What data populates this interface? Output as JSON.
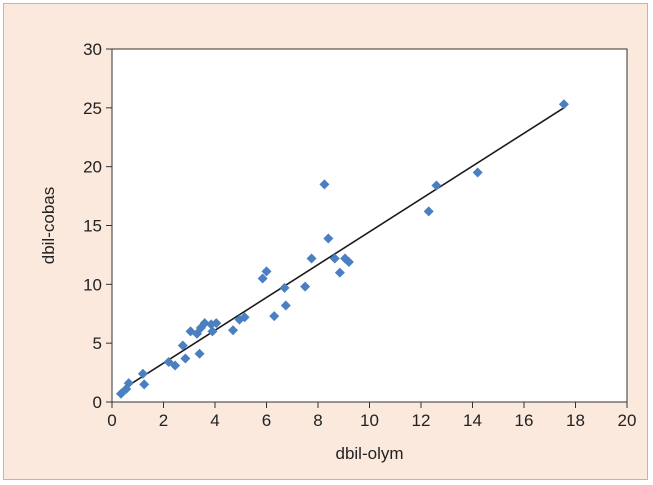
{
  "chart_data": {
    "type": "scatter",
    "title": "",
    "xlabel": "dbil-olym",
    "ylabel": "dbil-cobas",
    "xlim": [
      0,
      20
    ],
    "ylim": [
      0,
      30
    ],
    "xticks": [
      0,
      2,
      4,
      6,
      8,
      10,
      12,
      14,
      16,
      18,
      20
    ],
    "yticks": [
      0,
      5,
      10,
      15,
      20,
      25,
      30
    ],
    "grid": false,
    "legend": "none",
    "series": [
      {
        "points": [
          {
            "x": 0.35,
            "y": 0.7
          },
          {
            "x": 0.55,
            "y": 1.1
          },
          {
            "x": 0.65,
            "y": 1.6
          },
          {
            "x": 1.2,
            "y": 2.4
          },
          {
            "x": 1.25,
            "y": 1.5
          },
          {
            "x": 2.2,
            "y": 3.4
          },
          {
            "x": 2.45,
            "y": 3.1
          },
          {
            "x": 2.75,
            "y": 4.8
          },
          {
            "x": 2.85,
            "y": 3.7
          },
          {
            "x": 3.05,
            "y": 6.0
          },
          {
            "x": 3.3,
            "y": 5.8
          },
          {
            "x": 3.4,
            "y": 4.1
          },
          {
            "x": 3.45,
            "y": 6.3
          },
          {
            "x": 3.6,
            "y": 6.7
          },
          {
            "x": 3.85,
            "y": 6.6
          },
          {
            "x": 3.9,
            "y": 6.0
          },
          {
            "x": 4.05,
            "y": 6.7
          },
          {
            "x": 4.7,
            "y": 6.1
          },
          {
            "x": 4.95,
            "y": 7.0
          },
          {
            "x": 5.15,
            "y": 7.2
          },
          {
            "x": 5.85,
            "y": 10.5
          },
          {
            "x": 6.0,
            "y": 11.1
          },
          {
            "x": 6.3,
            "y": 7.3
          },
          {
            "x": 6.7,
            "y": 9.7
          },
          {
            "x": 6.75,
            "y": 8.2
          },
          {
            "x": 7.5,
            "y": 9.8
          },
          {
            "x": 7.75,
            "y": 12.2
          },
          {
            "x": 8.25,
            "y": 18.5
          },
          {
            "x": 8.4,
            "y": 13.9
          },
          {
            "x": 8.65,
            "y": 12.2
          },
          {
            "x": 8.85,
            "y": 11.0
          },
          {
            "x": 9.05,
            "y": 12.2
          },
          {
            "x": 9.2,
            "y": 11.9
          },
          {
            "x": 12.3,
            "y": 16.2
          },
          {
            "x": 12.6,
            "y": 18.4
          },
          {
            "x": 14.2,
            "y": 19.5
          },
          {
            "x": 17.55,
            "y": 25.3
          }
        ]
      }
    ],
    "fit_line": {
      "x": [
        0.35,
        17.55
      ],
      "y": [
        1.0,
        25.0
      ]
    },
    "colors": {
      "marker": "#4a7fc1",
      "fit_line": "#1a1a1a",
      "background": "#fbe9dd",
      "plot_area": "#ffffff"
    }
  }
}
